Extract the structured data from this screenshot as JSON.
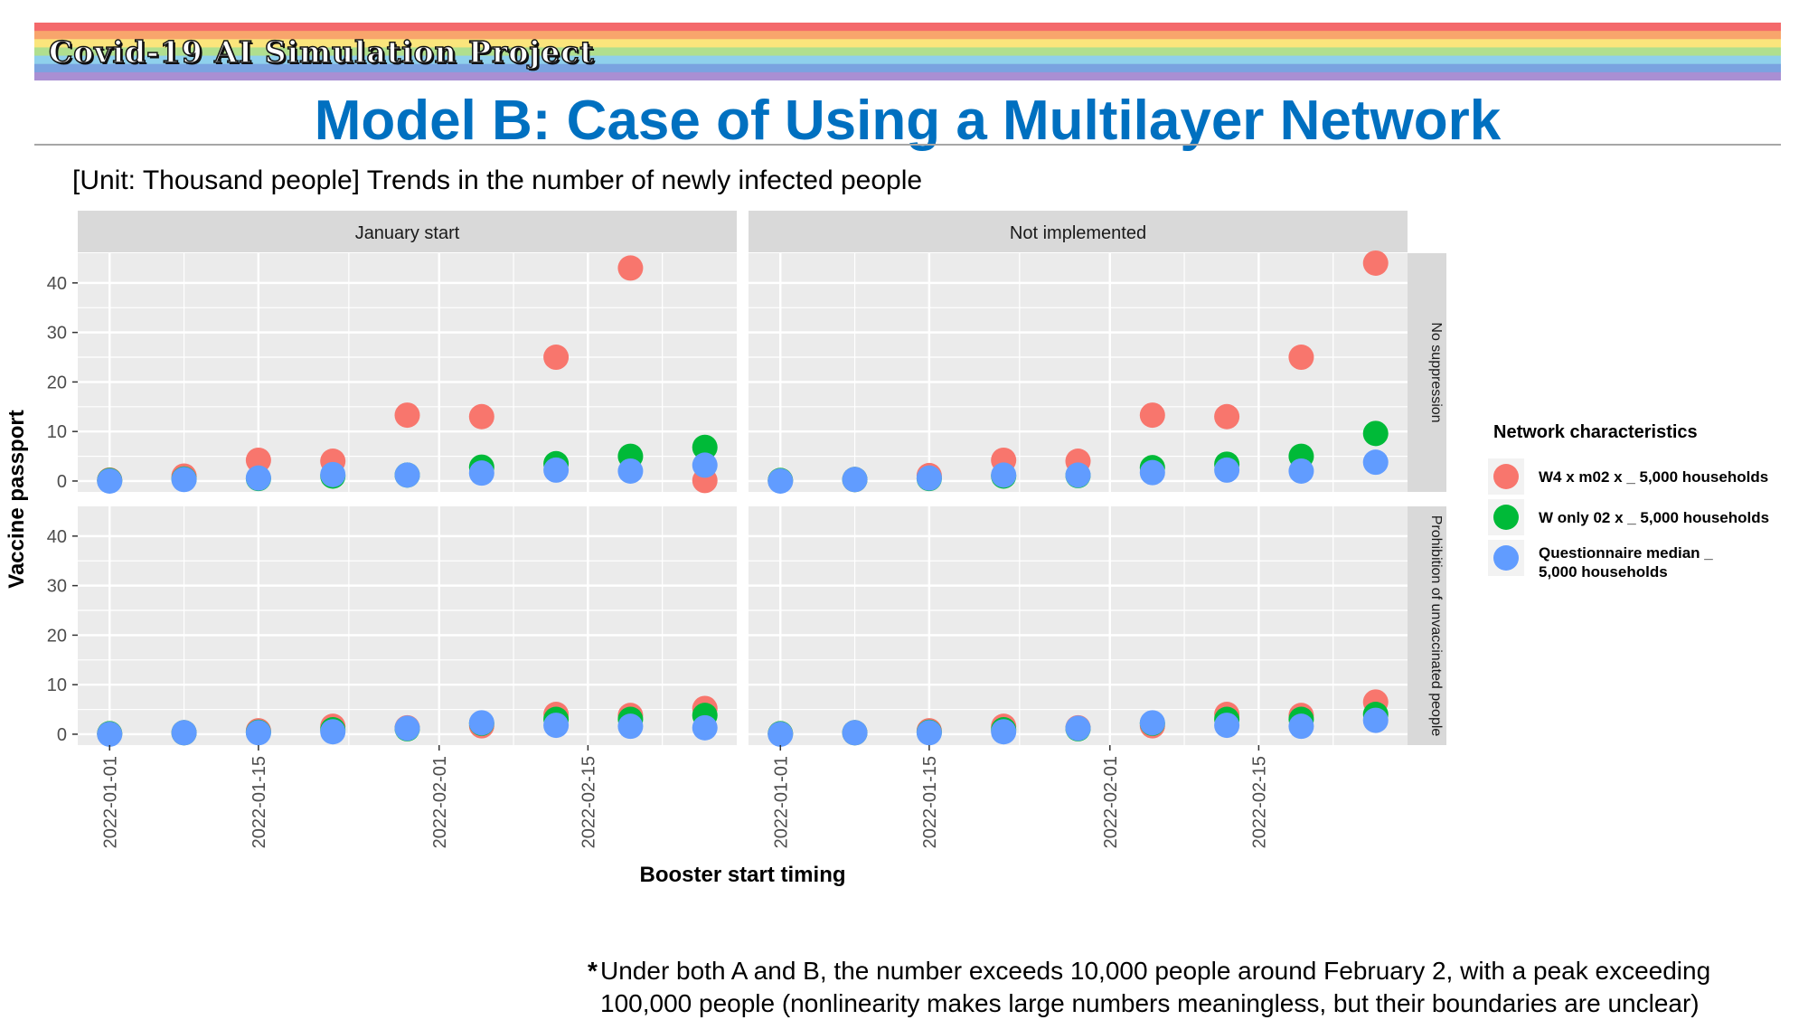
{
  "header": {
    "project_title": "Covid-19 AI Simulation Project",
    "main_title": "Model B: Case of Using a Multilayer Network",
    "subtitle": "[Unit: Thousand people] Trends in the number of newly infected people",
    "rainbow_colors": [
      "#f4696b",
      "#f8a56c",
      "#fbe57c",
      "#b0df8e",
      "#8fd0ec",
      "#7aa3e0",
      "#a98fd3"
    ]
  },
  "footnote": {
    "mark": "*",
    "line1": "Under both A and B, the number exceeds 10,000 people around February 2, with a peak exceeding",
    "line2": "100,000 people (nonlinearity makes large numbers meaningless, but their boundaries are unclear)"
  },
  "chart_data": {
    "type": "scatter",
    "facet_columns": [
      "January start",
      "Not implemented"
    ],
    "facet_rows": [
      "No suppression",
      "Prohibition of unvaccinated people"
    ],
    "xlabel": "Booster start timing",
    "ylabel": "Vaccine passport",
    "x_ticks": [
      "2022-01-01",
      "2022-01-15",
      "2022-02-01",
      "2022-02-15"
    ],
    "x": [
      "2022-01-01",
      "2022-01-08",
      "2022-01-15",
      "2022-01-22",
      "2022-01-29",
      "2022-02-05",
      "2022-02-12",
      "2022-02-19",
      "2022-02-26"
    ],
    "xlim": [
      "2021-12-29",
      "2022-03-01"
    ],
    "y_ticks": [
      0,
      10,
      20,
      30,
      40
    ],
    "ylim": [
      -2.2,
      46
    ],
    "legend_title": "Network characteristics",
    "legend_position": "right",
    "series": [
      {
        "name": "W4 x m02 x _ 5,000 households",
        "color": "#f8766d"
      },
      {
        "name": "W only 02 x _ 5,000 households",
        "color": "#00ba38"
      },
      {
        "name_lines": [
          "Questionnaire median _",
          "5,000 households"
        ],
        "color": "#619cff"
      }
    ],
    "panels": [
      {
        "col": 0,
        "row": 0,
        "values": [
          [
            0.2,
            1.0,
            4.2,
            4.0,
            13.3,
            13.0,
            25.0,
            43.0,
            0.1
          ],
          [
            0.1,
            0.4,
            0.5,
            1.0,
            1.2,
            2.8,
            3.5,
            5.0,
            6.8
          ],
          [
            0.0,
            0.3,
            0.6,
            1.3,
            1.2,
            1.6,
            2.2,
            2.0,
            3.2
          ]
        ]
      },
      {
        "col": 1,
        "row": 0,
        "values": [
          [
            0.1,
            0.3,
            1.1,
            4.2,
            4.0,
            13.3,
            13.0,
            25.0,
            44.0
          ],
          [
            0.1,
            0.3,
            0.5,
            1.0,
            1.1,
            2.7,
            3.4,
            5.0,
            9.6
          ],
          [
            0.0,
            0.3,
            0.6,
            1.2,
            1.2,
            1.7,
            2.2,
            2.0,
            3.8
          ]
        ]
      },
      {
        "col": 0,
        "row": 1,
        "values": [
          [
            0.1,
            0.3,
            0.7,
            1.6,
            1.3,
            1.7,
            4.0,
            3.8,
            5.2
          ],
          [
            0.1,
            0.3,
            0.4,
            0.9,
            1.1,
            2.2,
            3.0,
            3.0,
            3.8
          ],
          [
            0.0,
            0.3,
            0.3,
            0.5,
            1.2,
            2.3,
            1.8,
            1.6,
            1.3
          ]
        ]
      },
      {
        "col": 1,
        "row": 1,
        "values": [
          [
            0.1,
            0.3,
            0.7,
            1.6,
            1.3,
            1.7,
            4.0,
            3.8,
            6.5
          ],
          [
            0.1,
            0.3,
            0.4,
            0.9,
            1.1,
            2.2,
            3.0,
            3.0,
            4.0
          ],
          [
            0.0,
            0.3,
            0.3,
            0.5,
            1.2,
            2.3,
            1.8,
            1.6,
            2.8
          ]
        ]
      }
    ]
  }
}
